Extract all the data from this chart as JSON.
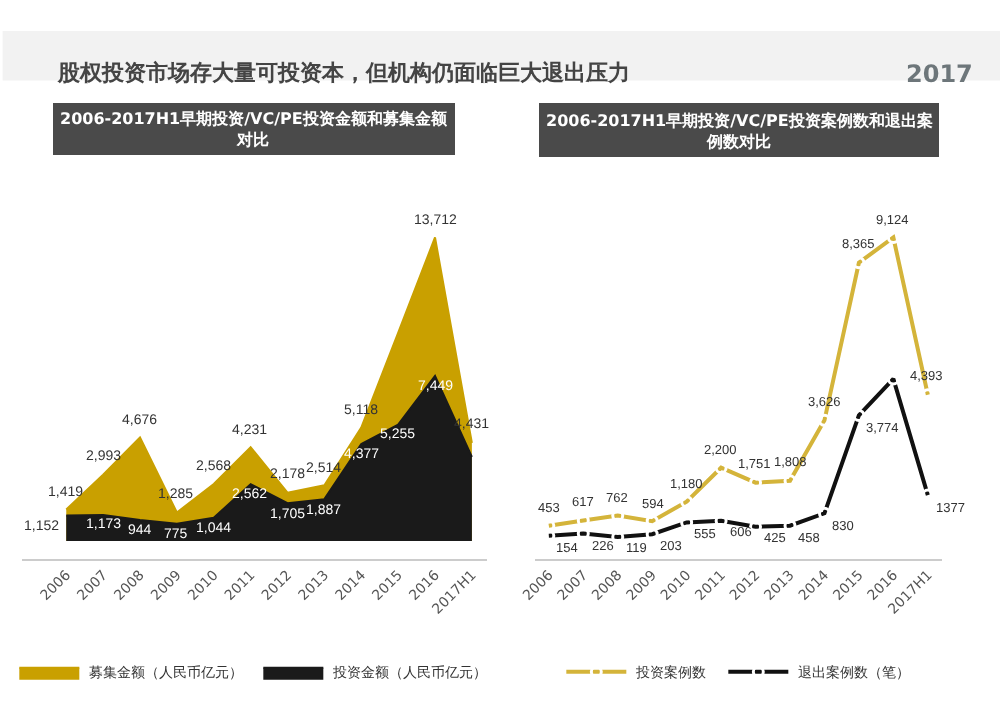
{
  "chart_data": [
    {
      "type": "area",
      "title": "2006-2017H1早期投资/VC/PE投资金额和募集金额对比",
      "annotations": [
        "股权投资市场存大量可投资本，但机构仍面临巨大退出压力",
        "2017"
      ],
      "categories": [
        "2006",
        "2007",
        "2008",
        "2009",
        "2010",
        "2011",
        "2012",
        "2013",
        "2014",
        "2015",
        "2016",
        "2017H1"
      ],
      "series": [
        {
          "name": "募集金额（人民币亿元）",
          "color": "#c9a000",
          "values": [
            1419,
            2993,
            4676,
            1285,
            2568,
            4231,
            2178,
            2514,
            5118,
            9400,
            13712,
            4431
          ],
          "value_labels": [
            "1,419",
            "2,993",
            "4,676",
            "1,285",
            "2,568",
            "4,231",
            "2,178",
            "2,514",
            "5,118",
            null,
            "13,712",
            "4,431"
          ]
        },
        {
          "name": "投资金额（人民币亿元）",
          "color": "#1a1a1a",
          "values": [
            1152,
            1173,
            944,
            775,
            1044,
            2562,
            1705,
            1887,
            4377,
            5255,
            7449,
            3800
          ],
          "value_labels": [
            "1,152",
            "1,173",
            "944",
            "775",
            "1,044",
            "2,562",
            "1,705",
            "1,887",
            "4,377",
            "5,255",
            "7,449",
            null
          ]
        }
      ],
      "legend": "bottom"
    },
    {
      "type": "line",
      "title": "2006-2017H1早期投资/VC/PE投资案例数和退出案例数对比",
      "categories": [
        "2006",
        "2007",
        "2008",
        "2009",
        "2010",
        "2011",
        "2012",
        "2013",
        "2014",
        "2015",
        "2016",
        "2017H1"
      ],
      "series": [
        {
          "name": "投资案例数",
          "color": "#d4b43a",
          "values": [
            453,
            617,
            762,
            594,
            1180,
            2200,
            1751,
            1808,
            3626,
            8365,
            9124,
            4393
          ],
          "value_labels": [
            "453",
            "617",
            "762",
            "594",
            "1,180",
            "2,200",
            "1,751",
            "1,808",
            "3,626",
            "8,365",
            "9,124",
            "4,393"
          ]
        },
        {
          "name": "退出案例数（笔）",
          "color": "#111111",
          "values": [
            154,
            226,
            119,
            203,
            555,
            606,
            425,
            458,
            830,
            3774,
            4870,
            1377
          ],
          "value_labels": [
            "154",
            "226",
            "119",
            "203",
            "555",
            "606",
            "425",
            "458",
            "830",
            "3,774",
            null,
            "1377"
          ]
        }
      ],
      "marker": "circle",
      "legend": "bottom"
    }
  ]
}
